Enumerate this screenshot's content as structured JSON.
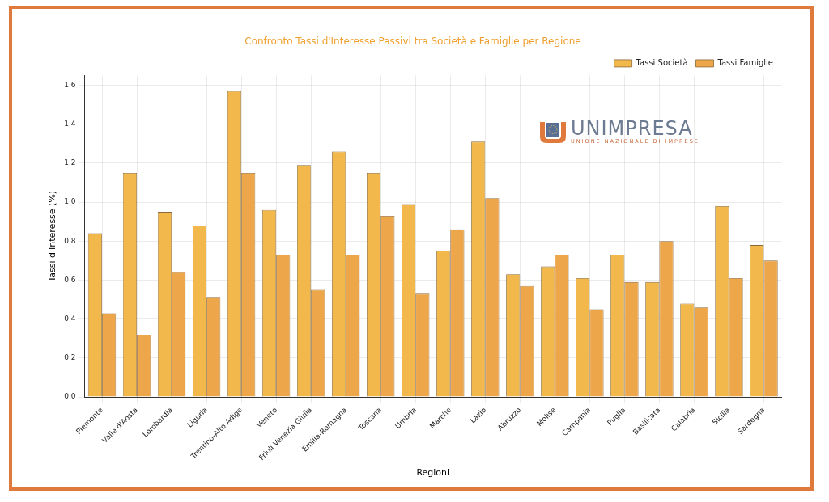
{
  "chart_data": {
    "type": "bar",
    "title": "Confronto Tassi d'Interesse Passivi tra Società e Famiglie per Regione",
    "x_label": "Regioni",
    "y_label": "Tassi d'Interesse (%)",
    "categories": [
      "Piemonte",
      "Valle d'Aosta",
      "Lombardia",
      "Liguria",
      "Trentino-Alto Adige",
      "Veneto",
      "Friuli Venezia Giulia",
      "Emilia-Romagna",
      "Toscana",
      "Umbria",
      "Marche",
      "Lazio",
      "Abruzzo",
      "Molise",
      "Campania",
      "Puglia",
      "Basilicata",
      "Calabria",
      "Sicilia",
      "Sardegna"
    ],
    "series": [
      {
        "name": "Tassi Società",
        "color": "#f2b84c",
        "values": [
          0.84,
          1.15,
          0.95,
          0.88,
          1.57,
          0.96,
          1.19,
          1.26,
          1.15,
          0.99,
          0.75,
          1.31,
          0.63,
          0.67,
          0.61,
          0.73,
          0.59,
          0.48,
          0.98,
          0.78
        ]
      },
      {
        "name": "Tassi Famiglie",
        "color": "#eea64b",
        "values": [
          0.43,
          0.32,
          0.64,
          0.51,
          1.15,
          0.73,
          0.55,
          0.73,
          0.93,
          0.53,
          0.86,
          1.02,
          0.57,
          0.73,
          0.45,
          0.59,
          0.8,
          0.46,
          0.61,
          0.7
        ]
      }
    ],
    "ylim": [
      0,
      1.65
    ],
    "yticks": [
      {
        "value": 0,
        "label": "0.0"
      },
      {
        "value": 0.2,
        "label": "0.2"
      },
      {
        "value": 0.4,
        "label": "0.4"
      },
      {
        "value": 0.6,
        "label": "0.6"
      },
      {
        "value": 0.8,
        "label": "0.8"
      },
      {
        "value": 1,
        "label": "1.0"
      },
      {
        "value": 1.2,
        "label": "1.2"
      },
      {
        "value": 1.4,
        "label": "1.4"
      },
      {
        "value": 1.6,
        "label": "1.6"
      }
    ],
    "grid": true,
    "legend": "upper right",
    "logo": {
      "text": "UNIMPRESA",
      "subtitle": "UNIONE NAZIONALE DI IMPRESE"
    }
  }
}
